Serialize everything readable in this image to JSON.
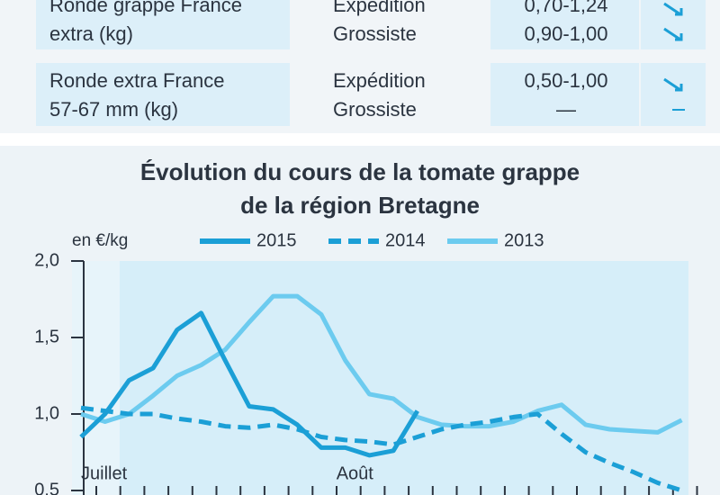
{
  "table": {
    "rows": [
      {
        "product": [
          "Ronde grappe France",
          "extra (kg)"
        ],
        "markets": [
          "Expédition",
          "Grossiste"
        ],
        "prices": [
          "0,70-1,24",
          "0,90-1,00"
        ]
      },
      {
        "product": [
          "Ronde extra France",
          "57-67 mm (kg)"
        ],
        "markets": [
          "Expédition",
          "Grossiste"
        ],
        "prices": [
          "0,50-1,00",
          "—"
        ]
      }
    ]
  },
  "chart_data": {
    "type": "line",
    "title": [
      "Évolution du cours de la tomate grappe",
      "de la région Bretagne"
    ],
    "ylabel": "en €/kg",
    "categories": [
      "Juillet",
      null,
      null,
      null,
      null,
      null,
      null,
      null,
      null,
      null,
      null,
      "Août",
      null,
      null,
      null,
      null,
      null,
      null,
      null,
      null,
      null,
      null,
      null,
      null,
      null,
      null
    ],
    "series": [
      {
        "name": "2015",
        "color": "#1b9fd6",
        "dashed": false,
        "values": [
          0.85,
          1.0,
          1.22,
          1.3,
          1.55,
          1.66,
          1.35,
          1.05,
          1.03,
          0.93,
          0.78,
          0.78,
          0.73,
          0.76,
          1.02,
          null,
          null,
          null,
          null,
          null,
          null,
          null,
          null,
          null,
          null,
          null
        ]
      },
      {
        "name": "2014",
        "color": "#1b9fd6",
        "dashed": true,
        "values": [
          1.04,
          1.02,
          1.0,
          1.0,
          0.97,
          0.95,
          0.92,
          0.91,
          0.93,
          0.9,
          0.85,
          0.83,
          0.82,
          0.8,
          0.85,
          0.9,
          0.93,
          0.95,
          0.98,
          1.0,
          0.87,
          0.75,
          0.68,
          0.62,
          0.55,
          0.5
        ]
      },
      {
        "name": "2013",
        "color": "#6ccbef",
        "dashed": false,
        "values": [
          1.0,
          0.95,
          1.0,
          1.12,
          1.25,
          1.32,
          1.42,
          1.6,
          1.77,
          1.77,
          1.65,
          1.35,
          1.13,
          1.1,
          0.98,
          0.93,
          0.92,
          0.92,
          0.95,
          1.02,
          1.06,
          0.93,
          0.9,
          0.89,
          0.88,
          0.96
        ]
      }
    ],
    "ylim": [
      0.5,
      2.0
    ],
    "yticks": [
      {
        "value": 0.5,
        "label": "0,5"
      },
      {
        "value": 1.0,
        "label": "1,0"
      },
      {
        "value": 1.5,
        "label": "1,5"
      },
      {
        "value": 2.0,
        "label": "2,0"
      }
    ]
  }
}
